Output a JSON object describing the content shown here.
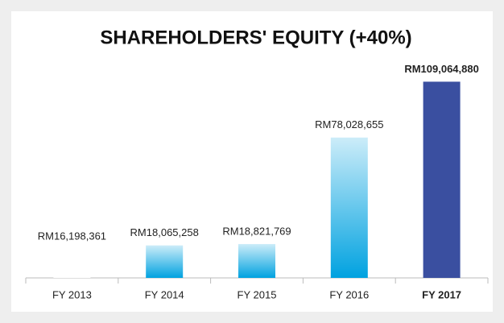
{
  "chart_data": {
    "type": "bar",
    "title": "SHAREHOLDERS' EQUITY (+40%)",
    "categories": [
      "FY 2013",
      "FY 2014",
      "FY 2015",
      "FY 2016",
      "FY 2017"
    ],
    "values": [
      16198361,
      18065258,
      18821769,
      78028655,
      109064880
    ],
    "value_labels": [
      "RM16,198,361",
      "RM18,065,258",
      "RM18,821,769",
      "RM78,028,655",
      "RM109,064,880"
    ],
    "colors": [
      "#ffffff",
      "#00a2e0",
      "#00a2e0",
      "#00a2e0",
      "#3a4fa0"
    ],
    "gradient": [
      false,
      true,
      true,
      true,
      false
    ],
    "highlight_index": 4,
    "ylim": [
      0,
      120000000
    ]
  }
}
